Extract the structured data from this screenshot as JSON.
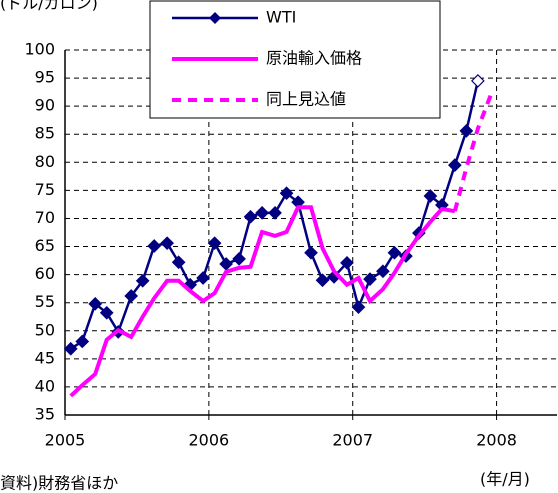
{
  "chart_data": {
    "type": "line",
    "y_label": "(ドル/ガロン)",
    "source": "資料)財務省ほか",
    "x_label": "(年/月)",
    "x": [
      2005.04,
      2005.12,
      2005.21,
      2005.29,
      2005.37,
      2005.46,
      2005.54,
      2005.62,
      2005.71,
      2005.79,
      2005.87,
      2005.96,
      2006.04,
      2006.12,
      2006.21,
      2006.29,
      2006.37,
      2006.46,
      2006.54,
      2006.62,
      2006.71,
      2006.79,
      2006.87,
      2006.96,
      2007.04,
      2007.12,
      2007.21,
      2007.29,
      2007.37,
      2007.46,
      2007.54,
      2007.62,
      2007.71,
      2007.79,
      2007.87,
      2007.96
    ],
    "series": [
      {
        "name": "WTI",
        "color": "#000080",
        "marker": "diamond",
        "open_marker_last": true,
        "values": [
          46.8,
          48.1,
          54.8,
          53.2,
          49.8,
          56.2,
          58.9,
          65.1,
          65.6,
          62.2,
          58.2,
          59.4,
          65.6,
          61.9,
          62.8,
          70.3,
          71,
          71,
          74.5,
          72.9,
          63.9,
          59,
          59.6,
          62.1,
          54.2,
          59.2,
          60.6,
          63.9,
          63.3,
          67.4,
          74,
          72.4,
          79.5,
          85.6,
          94.5,
          null
        ]
      },
      {
        "name": "原油輸入価格",
        "color": "#ff00ff",
        "dashed": false,
        "values": [
          38.4,
          40.3,
          42.3,
          48.4,
          50.1,
          48.9,
          52.5,
          55.8,
          58.9,
          58.9,
          57.1,
          55.3,
          56.7,
          60.5,
          61.2,
          61.4,
          67.6,
          66.9,
          67.6,
          72,
          72,
          64.7,
          60.6,
          58.2,
          59.4,
          55.3,
          57.4,
          60.3,
          63.7,
          66.9,
          69.4,
          71.7,
          71.3,
          null,
          null,
          null
        ]
      },
      {
        "name": "同上見込値",
        "color": "#ff00ff",
        "dashed": true,
        "values": [
          null,
          null,
          null,
          null,
          null,
          null,
          null,
          null,
          null,
          null,
          null,
          null,
          null,
          null,
          null,
          null,
          null,
          null,
          null,
          null,
          null,
          null,
          null,
          null,
          null,
          null,
          null,
          null,
          null,
          null,
          null,
          null,
          71.3,
          79,
          86,
          92
        ]
      }
    ],
    "xlim": [
      2005,
      2008.42
    ],
    "xticks": [
      2005,
      2006,
      2007,
      2008
    ],
    "ylim": [
      35,
      100
    ],
    "yticks": [
      35,
      40,
      45,
      50,
      55,
      60,
      65,
      70,
      75,
      80,
      85,
      90,
      95,
      100
    ],
    "grid": true
  }
}
